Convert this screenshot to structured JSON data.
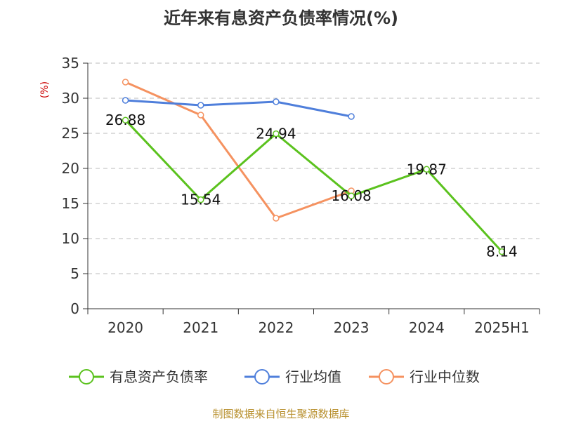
{
  "chart_data": {
    "type": "line",
    "title": "近年来有息资产负债率情况(%)",
    "y_unit_label": "(%)",
    "categories": [
      "2020",
      "2021",
      "2022",
      "2023",
      "2024",
      "2025H1"
    ],
    "ylim": [
      0,
      35
    ],
    "y_ticks": [
      0,
      5,
      10,
      15,
      20,
      25,
      30,
      35
    ],
    "grid": true,
    "legend_position": "bottom",
    "series": [
      {
        "name": "有息资产负债率",
        "color": "#5bc21e",
        "values": [
          26.88,
          15.54,
          24.94,
          16.08,
          19.87,
          8.14
        ],
        "labels": [
          "26.88",
          "15.54",
          "24.94",
          "16.08",
          "19.87",
          "8.14"
        ]
      },
      {
        "name": "行业均值",
        "color": "#4f7fdb",
        "values": [
          29.7,
          29.0,
          29.5,
          27.4,
          null,
          null
        ]
      },
      {
        "name": "行业中位数",
        "color": "#f59260",
        "values": [
          32.3,
          27.6,
          12.9,
          16.8,
          null,
          null
        ]
      }
    ],
    "source": "制图数据来自恒生聚源数据库"
  }
}
